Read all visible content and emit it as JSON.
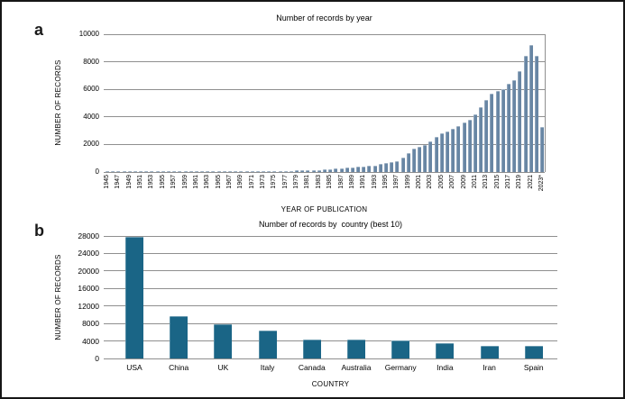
{
  "figure": {
    "panels": [
      {
        "label": "a"
      },
      {
        "label": "b"
      }
    ]
  },
  "chart_data": [
    {
      "type": "bar",
      "panel": "a",
      "title": "Number of records by year",
      "xlabel": "YEAR OF PUBLICATION",
      "ylabel": "NUMBER OF RECORDS",
      "ylim": [
        0,
        10000
      ],
      "ytick_step": 2000,
      "grid": "horizontal",
      "legend": "none",
      "bar_color": "#6886a4",
      "xtick_label_every": 2,
      "categories": [
        "1945",
        "1946",
        "1947",
        "1948",
        "1949",
        "1950",
        "1951",
        "1952",
        "1953",
        "1954",
        "1955",
        "1956",
        "1957",
        "1958",
        "1959",
        "1960",
        "1961",
        "1962",
        "1963",
        "1964",
        "1965",
        "1966",
        "1967",
        "1968",
        "1969",
        "1970",
        "1971",
        "1972",
        "1973",
        "1974",
        "1975",
        "1976",
        "1977",
        "1978",
        "1979",
        "1980",
        "1981",
        "1982",
        "1983",
        "1984",
        "1985",
        "1986",
        "1987",
        "1988",
        "1989",
        "1990",
        "1991",
        "1992",
        "1993",
        "1994",
        "1995",
        "1996",
        "1997",
        "1998",
        "1999",
        "2000",
        "2001",
        "2002",
        "2003",
        "2004",
        "2005",
        "2006",
        "2007",
        "2008",
        "2009",
        "2010",
        "2011",
        "2012",
        "2013",
        "2014",
        "2015",
        "2016",
        "2017",
        "2018",
        "2019",
        "2020",
        "2021",
        "2022",
        "2023*"
      ],
      "values": [
        8,
        10,
        12,
        14,
        16,
        18,
        20,
        22,
        24,
        26,
        28,
        30,
        32,
        34,
        36,
        38,
        40,
        42,
        45,
        48,
        50,
        52,
        55,
        58,
        60,
        62,
        65,
        68,
        70,
        75,
        80,
        85,
        90,
        95,
        100,
        105,
        110,
        120,
        150,
        165,
        200,
        240,
        265,
        310,
        350,
        395,
        400,
        440,
        485,
        570,
        640,
        705,
        790,
        1070,
        1400,
        1670,
        1840,
        1950,
        2250,
        2550,
        2780,
        2940,
        3110,
        3330,
        3570,
        3820,
        4190,
        4690,
        5250,
        5700,
        5850,
        6000,
        6400,
        6650,
        7350,
        8450,
        9200,
        8400,
        3250
      ]
    },
    {
      "type": "bar",
      "panel": "b",
      "title": "Number of records by  country (best 10)",
      "xlabel": "COUNTRY",
      "ylabel": "NUMBER OF RECORDS",
      "ylim": [
        0,
        28000
      ],
      "ytick_step": 4000,
      "grid": "horizontal",
      "legend": "none",
      "bar_color": "#1a6586",
      "xtick_label_every": 1,
      "categories": [
        "USA",
        "China",
        "UK",
        "Italy",
        "Canada",
        "Australia",
        "Germany",
        "India",
        "Iran",
        "Spain"
      ],
      "values": [
        27800,
        9600,
        7800,
        6400,
        4400,
        4250,
        4100,
        3400,
        2800,
        2850
      ]
    }
  ]
}
